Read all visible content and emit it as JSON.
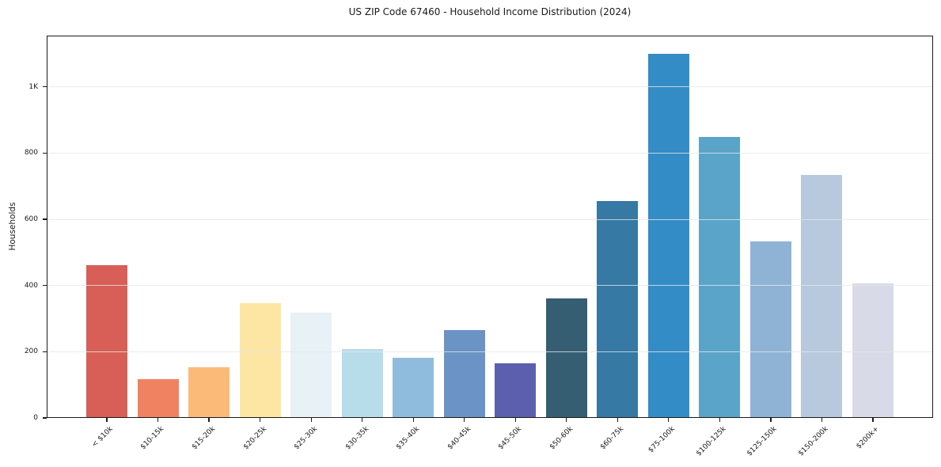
{
  "figure": {
    "background": "#ffffff"
  },
  "chart_data": {
    "type": "bar",
    "title": "US ZIP Code 67460 - Household Income Distribution (2024)",
    "xlabel": "",
    "ylabel": "Households",
    "categories": [
      "< $10k",
      "$10-15k",
      "$15-20k",
      "$20-25k",
      "$25-30k",
      "$30-35k",
      "$35-40k",
      "$40-45k",
      "$45-50k",
      "$50-60k",
      "$60-75k",
      "$75-100k",
      "$100-125k",
      "$125-150k",
      "$150-200k",
      "$200k+"
    ],
    "values": [
      462,
      118,
      154,
      346,
      317,
      208,
      181,
      265,
      165,
      360,
      655,
      1100,
      850,
      533,
      733,
      406
    ],
    "bar_colors": [
      "#d75f57",
      "#f08261",
      "#fcba79",
      "#fde5a4",
      "#e7f1f6",
      "#b7dcea",
      "#8fbcdc",
      "#6b93c5",
      "#5c5fae",
      "#355e72",
      "#3579a4",
      "#348cc6",
      "#5aa4c9",
      "#8fb3d5",
      "#b8c9de",
      "#d8dae7"
    ],
    "ylim": [
      0,
      1155
    ],
    "yticks": [
      {
        "value": 0,
        "label": "0"
      },
      {
        "value": 200,
        "label": "200"
      },
      {
        "value": 400,
        "label": "400"
      },
      {
        "value": 600,
        "label": "600"
      },
      {
        "value": 800,
        "label": "800"
      },
      {
        "value": 1000,
        "label": "1K"
      }
    ],
    "grid": "horizontal",
    "grid_color": "#e7e7e7",
    "spine_color": "#1a1a1a",
    "text_color": "#1a1a1a",
    "legend": "none"
  }
}
